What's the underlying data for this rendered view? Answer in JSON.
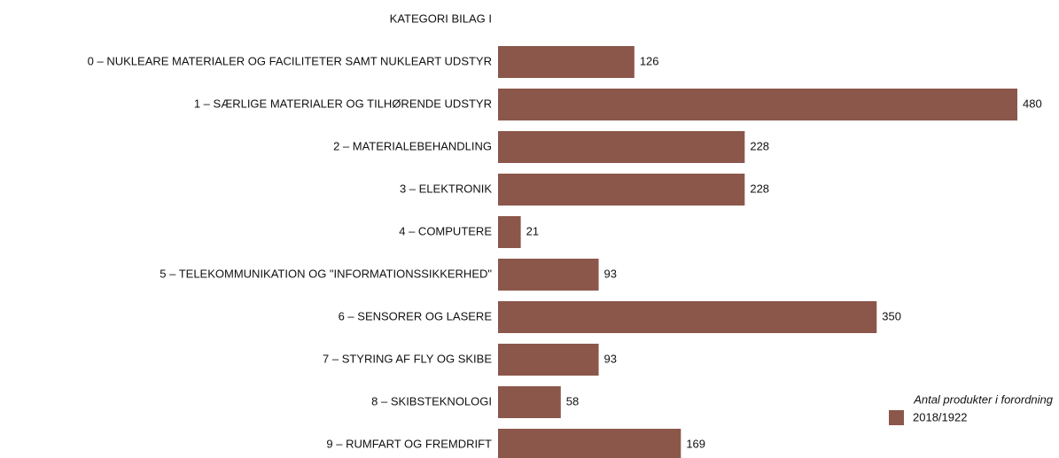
{
  "chart_data": {
    "type": "barh",
    "title": "KATEGORI BILAG  I",
    "categories": [
      "0 – NUKLEARE MATERIALER OG FACILITETER SAMT NUKLEART UDSTYR",
      "1 – SÆRLIGE MATERIALER OG TILHØRENDE UDSTYR",
      "2 – MATERIALEBEHANDLING",
      "3 – ELEKTRONIK",
      "4 – COMPUTERE",
      "5 – TELEKOMMUNIKATION OG \"INFORMATIONSSIKKERHED\"",
      "6 – SENSORER OG LASERE",
      "7 – STYRING AF FLY OG SKIBE",
      "8 – SKIBSTEKNOLOGI",
      "9 – RUMFART OG FREMDRIFT"
    ],
    "legend_title": "Antal produkter i forordning",
    "legend": "bottom-right",
    "series": [
      {
        "name": "2018/1922",
        "color": "#8b574a",
        "values": [
          126,
          480,
          228,
          228,
          21,
          93,
          350,
          93,
          58,
          169
        ]
      }
    ]
  }
}
